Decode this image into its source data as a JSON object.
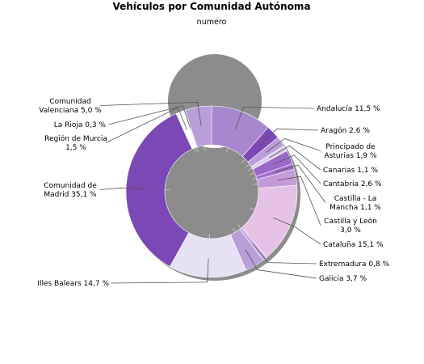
{
  "chart_data": {
    "type": "pie",
    "variant": "donut",
    "title": "Vehículos por Comunidad Autónoma",
    "subtitle": "numero",
    "unit": "%",
    "slices": [
      {
        "label": [
          "Andalucía 11,5 %"
        ],
        "value": 11.5,
        "color": "#a788ce"
      },
      {
        "label": [
          "Aragón 2,6 %"
        ],
        "value": 2.6,
        "color": "#7b48b5"
      },
      {
        "label": [
          "Principado de",
          "Asturias 1,9 %"
        ],
        "value": 1.9,
        "color": "#b99ed9"
      },
      {
        "label": [
          "Canarias 1,1 %"
        ],
        "value": 1.1,
        "color": "#ddd0ee"
      },
      {
        "label": [
          "Cantabria 2,6 %"
        ],
        "value": 2.6,
        "color": "#9a68c9"
      },
      {
        "label": [
          "Castilla - La",
          "Mancha 1,1 %"
        ],
        "value": 1.1,
        "color": "#9e70c9"
      },
      {
        "label": [
          "Castilla y León",
          "3,0 %"
        ],
        "value": 3.0,
        "color": "#c49ad9"
      },
      {
        "label": [
          "Cataluña 15,1 %"
        ],
        "value": 15.1,
        "color": "#e6c3e6"
      },
      {
        "label": [
          "Extremadura 0,8 %"
        ],
        "value": 0.8,
        "color": "#c8a7e0"
      },
      {
        "label": [
          "Galicia 3,7 %"
        ],
        "value": 3.7,
        "color": "#b99ed9"
      },
      {
        "label": [
          "Illes Balears 14,7 %"
        ],
        "value": 14.7,
        "color": "#e7e1f4"
      },
      {
        "label": [
          "Comunidad de",
          "Madrid 35,1 %"
        ],
        "value": 35.1,
        "color": "#7b48b5"
      },
      {
        "label": [
          "Región de Murcia",
          "1,5 %"
        ],
        "value": 1.5,
        "color": "#ffffff"
      },
      {
        "label": [
          "La Rioja 0,3 %"
        ],
        "value": 0.3,
        "color": "#e7e1f4"
      },
      {
        "label": [
          "Comunidad",
          "Valenciana 5,0 %"
        ],
        "value": 5.0,
        "color": "#b99ed9"
      }
    ]
  }
}
